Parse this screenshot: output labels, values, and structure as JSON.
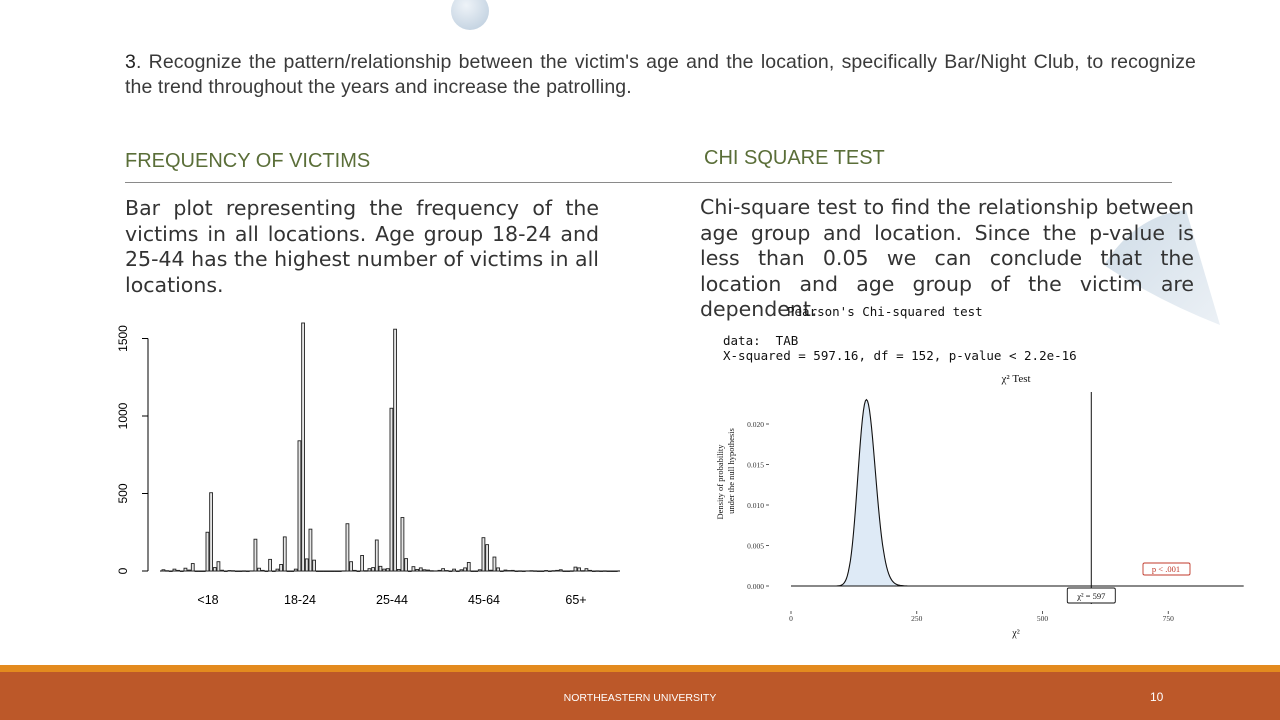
{
  "intro": {
    "number": "3",
    "text": ". Recognize the pattern/relationship between the victim's age and the location, specifically Bar/Night Club, to recognize the trend throughout the years and increase the patrolling."
  },
  "left_section": {
    "title": "FREQUENCY OF VICTIMS",
    "paragraph": "Bar plot representing the frequency of the victims in all locations. Age group 18-24 and 25-44 has the highest number of victims in all locations."
  },
  "right_section": {
    "title": "CHI SQUARE TEST",
    "paragraph": "Chi-square test to find the relationship between age group and location. Since the p-value is less than 0.05 we can conclude that the location and age group of the victim are dependent.",
    "test_output": {
      "heading": "Pearson's Chi-squared test",
      "data_line": "data:  TAB",
      "stat_line": "X-squared = 597.16, df = 152, p-value < 2.2e-16"
    }
  },
  "footer": {
    "org": "NORTHEASTERN UNIVERSITY",
    "page": "10",
    "bar_color": "#e38a1e",
    "band_color": "#bc5829"
  },
  "chart_data": [
    {
      "type": "bar",
      "title": "",
      "xlabel": "",
      "ylabel": "",
      "ylim": [
        0,
        1600
      ],
      "yticks": [
        "0",
        "500",
        "1000",
        "1500"
      ],
      "groups": [
        {
          "label": "<18",
          "values": [
            8,
            2,
            0,
            12,
            4,
            0,
            18,
            6,
            48,
            0,
            0,
            0,
            250,
            505,
            22,
            60,
            5,
            0,
            3,
            2,
            0,
            0,
            1,
            0
          ]
        },
        {
          "label": "18-24",
          "values": [
            205,
            18,
            4,
            0,
            75,
            0,
            12,
            42,
            220,
            0,
            0,
            12,
            840,
            1600,
            78,
            270,
            70,
            0,
            0,
            0,
            0,
            0,
            0,
            0
          ]
        },
        {
          "label": "25-44",
          "values": [
            305,
            60,
            4,
            0,
            100,
            2,
            15,
            22,
            200,
            30,
            12,
            15,
            1050,
            1560,
            10,
            345,
            80,
            0,
            28,
            10,
            20,
            8,
            6,
            2
          ]
        },
        {
          "label": "45-64",
          "values": [
            4,
            15,
            3,
            0,
            12,
            0,
            8,
            20,
            55,
            0,
            0,
            8,
            215,
            170,
            5,
            90,
            20,
            0,
            6,
            3,
            4,
            0,
            1,
            0
          ]
        },
        {
          "label": "65+",
          "values": [
            2,
            1,
            0,
            0,
            3,
            0,
            2,
            4,
            8,
            0,
            0,
            1,
            25,
            20,
            2,
            15,
            4,
            0,
            1,
            0,
            1,
            0,
            0,
            0
          ]
        }
      ]
    },
    {
      "type": "area",
      "title": "χ² Test",
      "xlabel": "χ²",
      "ylabel": "Density of probability under the null hypothesis",
      "xlim": [
        0,
        900
      ],
      "ylim": [
        0,
        0.025
      ],
      "xticks": [
        0,
        250,
        500,
        750
      ],
      "yticks": [
        "0.000",
        "0.005",
        "0.010",
        "0.015",
        "0.020"
      ],
      "df": 152,
      "statistic": 597,
      "statistic_label": "χ² = 597",
      "p_label": "p < .001"
    }
  ]
}
